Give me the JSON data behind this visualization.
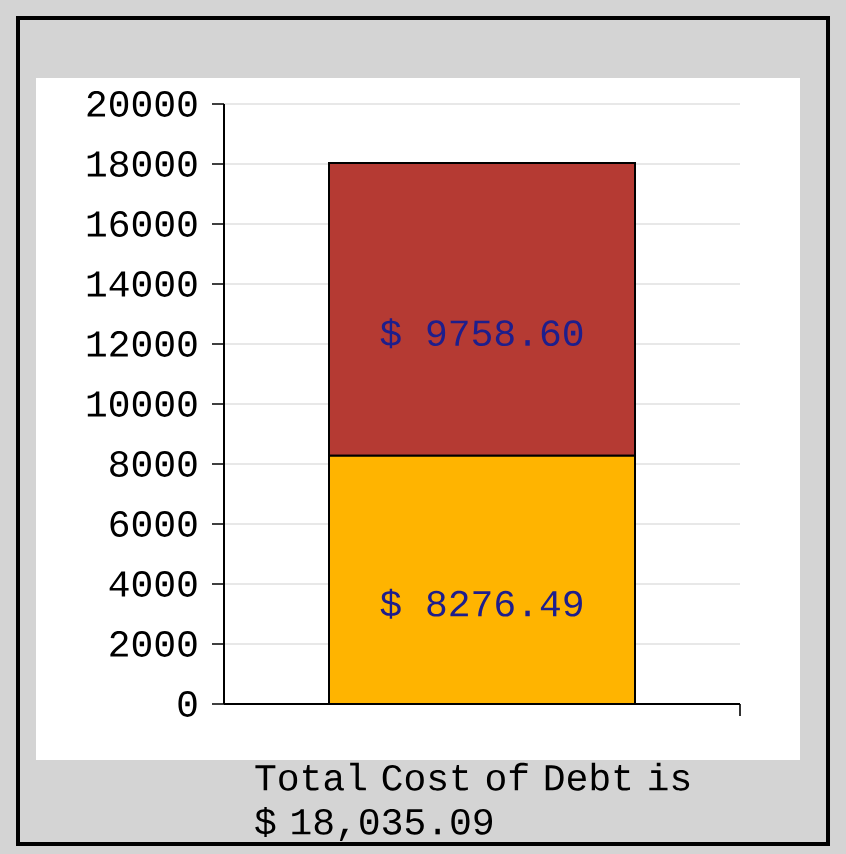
{
  "chart_data": {
    "type": "bar",
    "stacked": true,
    "categories": [
      null
    ],
    "series": [
      {
        "color": "#ffb400",
        "values": [
          8276.49
        ],
        "value_labels": [
          "$ 8276.49"
        ]
      },
      {
        "color": "#b53a33",
        "values": [
          9758.6
        ],
        "value_labels": [
          "$ 9758.60"
        ]
      }
    ],
    "ylim": [
      0,
      20000
    ],
    "yticks": [
      0,
      2000,
      4000,
      6000,
      8000,
      10000,
      12000,
      14000,
      16000,
      18000,
      20000
    ],
    "grid": "y",
    "xlabel": "Total Cost of Debt is $ 18,035.09"
  }
}
